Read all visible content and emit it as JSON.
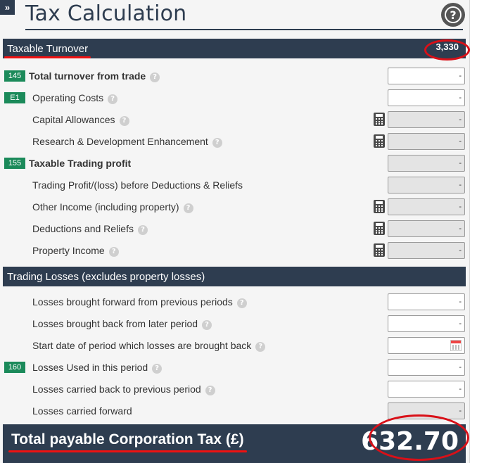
{
  "header": {
    "expand_glyph": "»",
    "title": "Tax Calculation",
    "help_glyph": "?"
  },
  "sections": {
    "turnover": {
      "title": "Taxable Turnover",
      "value": "3,330"
    },
    "losses": {
      "title": "Trading Losses (excludes property losses)"
    }
  },
  "rows": [
    {
      "badge": "145",
      "label": "Total turnover from trade",
      "help": "?",
      "value": "-"
    },
    {
      "badge": "E1",
      "label": "Operating Costs",
      "help": "?",
      "value": "-"
    },
    {
      "label": "Capital Allowances",
      "help": "?",
      "value": "-",
      "calculator": "calculator-icon"
    },
    {
      "label": "Research & Development Enhancement",
      "help": "?",
      "value": "-",
      "calculator": "calculator-icon"
    },
    {
      "badge": "155",
      "label": "Taxable Trading profit",
      "value": "-"
    },
    {
      "label": "Trading Profit/(loss) before Deductions & Reliefs",
      "value": "-"
    },
    {
      "label": "Other Income (including property)",
      "help": "?",
      "value": "-",
      "calculator": "calculator-icon"
    },
    {
      "label": "Deductions and Reliefs",
      "help": "?",
      "value": "-",
      "calculator": "calculator-icon"
    },
    {
      "label": "Property Income",
      "help": "?",
      "value": "-",
      "calculator": "calculator-icon"
    },
    {
      "label": "Losses brought forward from previous periods",
      "help": "?",
      "value": "-"
    },
    {
      "label": "Losses brought back from later period",
      "help": "?",
      "value": "-"
    },
    {
      "label": "Start date of period which losses are brought back",
      "help": "?",
      "value": "",
      "icon": "calendar-icon"
    },
    {
      "badge": "160",
      "label": "Losses Used in this period",
      "help": "?",
      "value": "-"
    },
    {
      "label": "Losses carried back to previous period",
      "help": "?",
      "value": "-"
    },
    {
      "label": "Losses carried forward",
      "value": "-"
    }
  ],
  "total": {
    "label": "Total payable Corporation Tax (£)",
    "value": "632.70"
  },
  "colors": {
    "header_bg": "#2e3d50",
    "badge_green": "#1b8a5a",
    "highlight_red": "#d91018"
  }
}
